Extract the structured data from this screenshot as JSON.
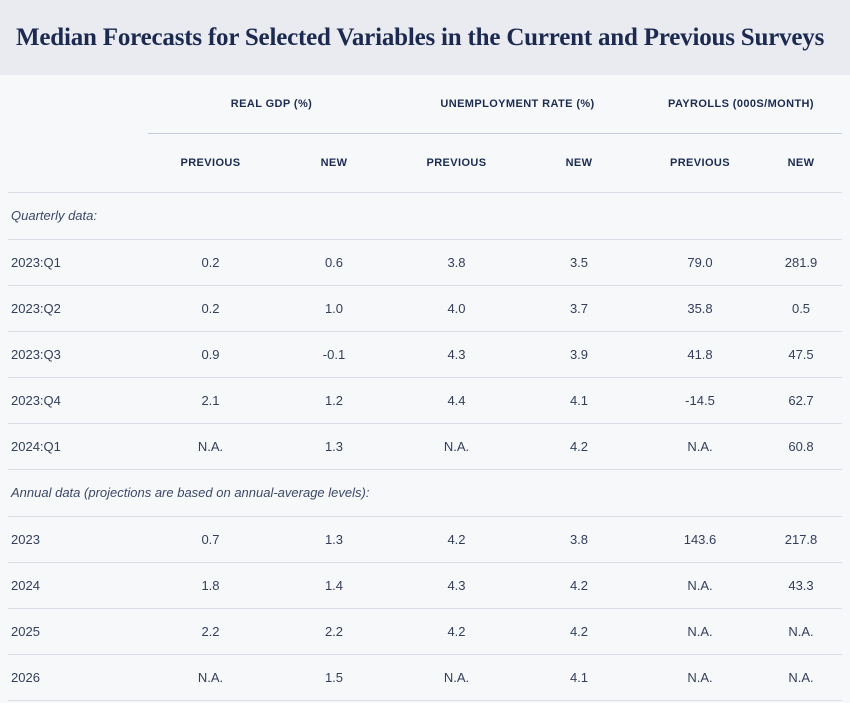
{
  "colors": {
    "title_band_bg": "#e9ebf1",
    "page_bg": "#f6f8fa",
    "title_text": "#1c2a50",
    "header_text": "#1c2b52",
    "data_text": "#333e5c",
    "divider": "#d9dee7",
    "group_underline": "#c6cedd"
  },
  "chart_data": {
    "type": "table",
    "title": "Median Forecasts for Selected Variables in the Current and Previous Surveys",
    "column_groups": [
      {
        "label": "REAL GDP (%)",
        "columns": [
          "PREVIOUS",
          "NEW"
        ]
      },
      {
        "label": "UNEMPLOYMENT RATE (%)",
        "columns": [
          "PREVIOUS",
          "NEW"
        ]
      },
      {
        "label": "PAYROLLS (000S/MONTH)",
        "columns": [
          "PREVIOUS",
          "NEW"
        ]
      }
    ],
    "sections": [
      {
        "label": "Quarterly data:",
        "rows": [
          {
            "label": "2023:Q1",
            "values": [
              "0.2",
              "0.6",
              "3.8",
              "3.5",
              "79.0",
              "281.9"
            ]
          },
          {
            "label": "2023:Q2",
            "values": [
              "0.2",
              "1.0",
              "4.0",
              "3.7",
              "35.8",
              "0.5"
            ]
          },
          {
            "label": "2023:Q3",
            "values": [
              "0.9",
              "-0.1",
              "4.3",
              "3.9",
              "41.8",
              "47.5"
            ]
          },
          {
            "label": "2023:Q4",
            "values": [
              "2.1",
              "1.2",
              "4.4",
              "4.1",
              "-14.5",
              "62.7"
            ]
          },
          {
            "label": "2024:Q1",
            "values": [
              "N.A.",
              "1.3",
              "N.A.",
              "4.2",
              "N.A.",
              "60.8"
            ]
          }
        ]
      },
      {
        "label": "Annual data (projections are based on annual-average levels):",
        "rows": [
          {
            "label": "2023",
            "values": [
              "0.7",
              "1.3",
              "4.2",
              "3.8",
              "143.6",
              "217.8"
            ]
          },
          {
            "label": "2024",
            "values": [
              "1.8",
              "1.4",
              "4.3",
              "4.2",
              "N.A.",
              "43.3"
            ]
          },
          {
            "label": "2025",
            "values": [
              "2.2",
              "2.2",
              "4.2",
              "4.2",
              "N.A.",
              "N.A."
            ]
          },
          {
            "label": "2026",
            "values": [
              "N.A.",
              "1.5",
              "N.A.",
              "4.1",
              "N.A.",
              "N.A."
            ]
          }
        ]
      }
    ]
  }
}
